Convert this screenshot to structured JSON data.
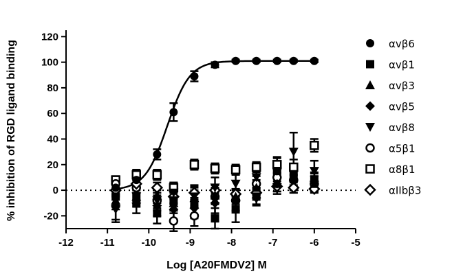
{
  "chart_data": {
    "type": "scatter",
    "xlabel": "Log [A20FMDV2] M",
    "ylabel": "% inhibition of RGD ligand binding",
    "xlim": [
      -12,
      -5
    ],
    "ylim": [
      -30,
      125
    ],
    "xticks": [
      -12,
      -11,
      -10,
      -9,
      -8,
      -7,
      -6,
      -5
    ],
    "yticks": [
      -20,
      0,
      20,
      40,
      60,
      80,
      100,
      120
    ],
    "reference_line": {
      "y": 0,
      "style": "dotted"
    },
    "fit_curve": {
      "series": "αvβ6",
      "bottom": 0,
      "top": 101,
      "log_ic50": -9.55,
      "hill": 1.6
    },
    "series": [
      {
        "name": "αvβ6",
        "marker": "circle-filled",
        "x": [
          -10.8,
          -10.3,
          -9.8,
          -9.4,
          -8.9,
          -8.4,
          -7.9,
          -7.4,
          -6.9,
          -6.5,
          -6.0
        ],
        "y": [
          2,
          8,
          28,
          61,
          89,
          98,
          101,
          101,
          101,
          101,
          101
        ],
        "err": [
          2,
          3,
          4,
          7,
          4,
          2,
          1,
          1,
          1,
          1,
          1
        ]
      },
      {
        "name": "αvβ1",
        "marker": "square-filled",
        "x": [
          -10.8,
          -10.3,
          -9.8,
          -9.4,
          -8.9,
          -8.4,
          -7.9,
          -7.4,
          -6.9,
          -6.5,
          -6.0
        ],
        "y": [
          -5,
          -6,
          -18,
          -8,
          -10,
          -22,
          -15,
          -5,
          15,
          12,
          8
        ],
        "err": [
          6,
          6,
          8,
          8,
          10,
          8,
          10,
          6,
          6,
          8,
          6
        ]
      },
      {
        "name": "αvβ3",
        "marker": "triangle-up-filled",
        "x": [
          -10.8,
          -10.3,
          -9.8,
          -9.4,
          -8.9,
          -8.4,
          -7.9,
          -7.4,
          -6.9,
          -6.5,
          -6.0
        ],
        "y": [
          -8,
          -5,
          -4,
          -10,
          -6,
          -4,
          -5,
          2,
          5,
          10,
          5
        ],
        "err": [
          7,
          6,
          6,
          8,
          8,
          6,
          6,
          6,
          6,
          8,
          6
        ]
      },
      {
        "name": "αvβ5",
        "marker": "diamond-filled",
        "x": [
          -10.8,
          -10.3,
          -9.8,
          -9.4,
          -8.9,
          -8.4,
          -7.9,
          -7.4,
          -6.9,
          -6.5,
          -6.0
        ],
        "y": [
          -13,
          -10,
          -12,
          -15,
          -14,
          -10,
          -8,
          -6,
          5,
          8,
          7
        ],
        "err": [
          10,
          8,
          8,
          8,
          8,
          8,
          8,
          6,
          8,
          10,
          6
        ]
      },
      {
        "name": "αvβ8",
        "marker": "triangle-down-filled",
        "x": [
          -10.8,
          -10.3,
          -9.8,
          -9.4,
          -8.9,
          -8.4,
          -7.9,
          -7.4,
          -6.9,
          -6.5,
          -6.0
        ],
        "y": [
          -15,
          -5,
          -8,
          -2,
          -5,
          2,
          5,
          10,
          15,
          30,
          15
        ],
        "err": [
          10,
          8,
          8,
          8,
          8,
          8,
          10,
          8,
          10,
          15,
          8
        ]
      },
      {
        "name": "α5β1",
        "marker": "circle-open",
        "x": [
          -10.8,
          -10.3,
          -9.8,
          -9.4,
          -8.9,
          -8.4,
          -7.9,
          -7.4,
          -6.9,
          -6.5,
          -6.0
        ],
        "y": [
          5,
          2,
          -8,
          -24,
          -20,
          -5,
          -8,
          5,
          10,
          8,
          5
        ],
        "err": [
          4,
          4,
          6,
          8,
          8,
          6,
          8,
          6,
          6,
          8,
          6
        ]
      },
      {
        "name": "α8β1",
        "marker": "square-open",
        "x": [
          -10.8,
          -10.3,
          -9.8,
          -9.4,
          -8.9,
          -8.4,
          -7.9,
          -7.4,
          -6.9,
          -6.5,
          -6.0
        ],
        "y": [
          8,
          12,
          12,
          2,
          20,
          17,
          16,
          18,
          20,
          18,
          35
        ],
        "err": [
          3,
          4,
          4,
          4,
          4,
          4,
          4,
          4,
          6,
          6,
          5
        ]
      },
      {
        "name": "αIIbβ3",
        "marker": "diamond-open",
        "x": [
          -10.8,
          -10.3,
          -9.8,
          -9.4,
          -8.9,
          -8.4,
          -7.9,
          -7.4,
          -6.9,
          -6.5,
          -6.0
        ],
        "y": [
          0,
          5,
          2,
          -5,
          -2,
          0,
          -3,
          -2,
          3,
          2,
          1
        ],
        "err": [
          4,
          4,
          4,
          6,
          6,
          4,
          4,
          4,
          4,
          4,
          3
        ]
      }
    ]
  }
}
